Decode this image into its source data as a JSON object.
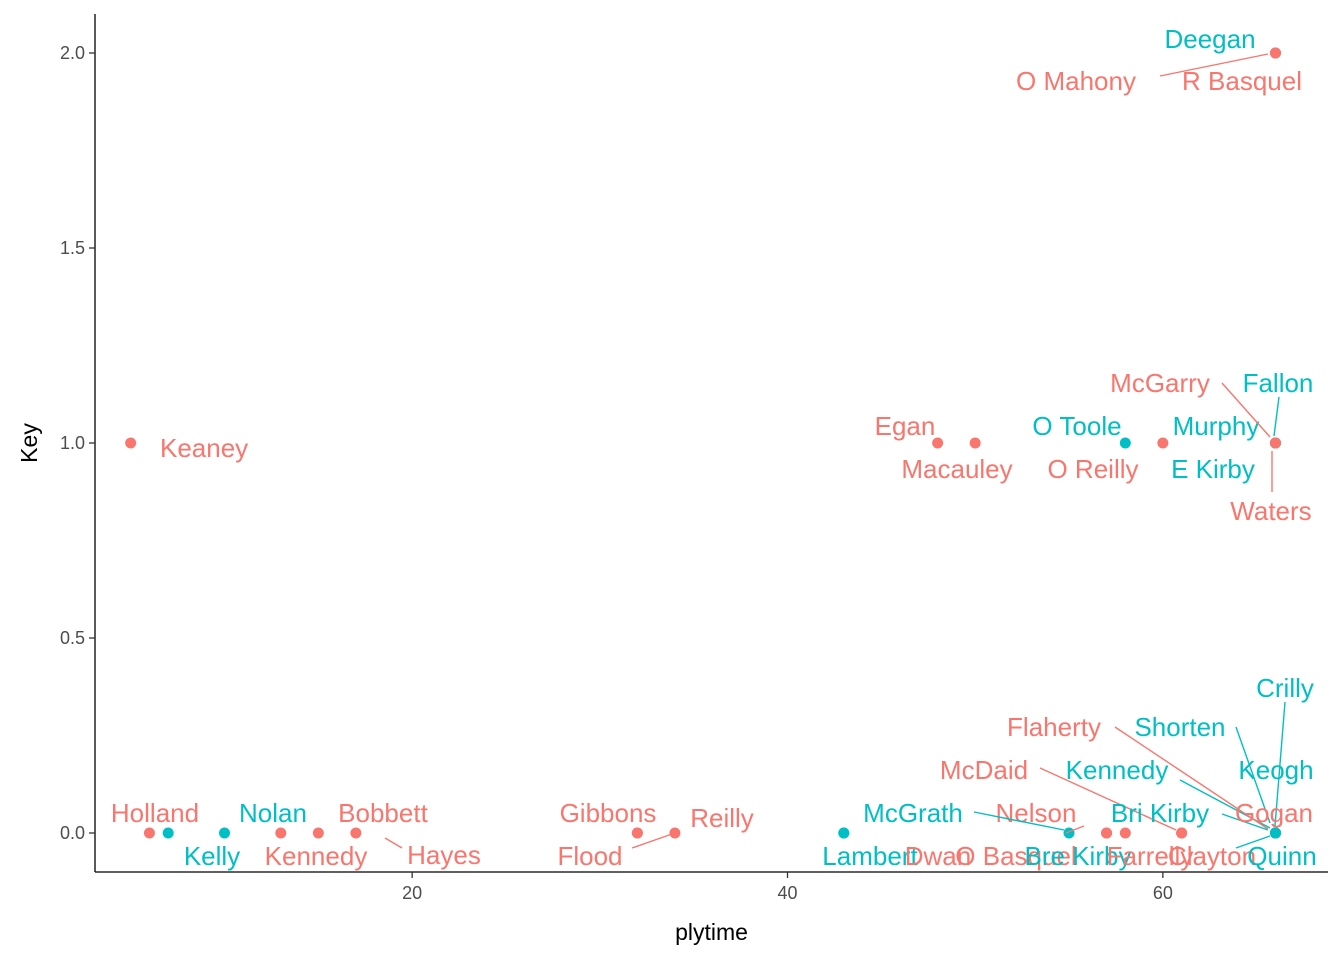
{
  "chart_data": {
    "type": "scatter",
    "xlabel": "plytime",
    "ylabel": "Key",
    "xlim": [
      3.1,
      68.8
    ],
    "ylim": [
      -0.1,
      2.1
    ],
    "x_ticks": [
      20,
      40,
      60
    ],
    "y_ticks": [
      0.0,
      0.5,
      1.0,
      1.5,
      2.0
    ],
    "x_tick_labels": [
      "20",
      "40",
      "60"
    ],
    "y_tick_labels": [
      "0.0",
      "0.5",
      "1.0",
      "1.5",
      "2.0"
    ],
    "grid": false,
    "legend": "none",
    "colors": {
      "group_a": "#F8766D",
      "group_b": "#00BFC4",
      "axis": "#000000",
      "tick_text": "#4d4d4d"
    },
    "points": [
      {
        "label": "Keaney",
        "x": 5,
        "y": 1,
        "group": "group_a"
      },
      {
        "label": "Holland",
        "x": 6,
        "y": 0,
        "group": "group_a"
      },
      {
        "label": "Kelly",
        "x": 7,
        "y": 0,
        "group": "group_b"
      },
      {
        "label": "Nolan",
        "x": 10,
        "y": 0,
        "group": "group_b"
      },
      {
        "label": "Kennedy",
        "x": 13,
        "y": 0,
        "group": "group_a"
      },
      {
        "label": "Bobbett",
        "x": 15,
        "y": 0,
        "group": "group_a"
      },
      {
        "label": "Hayes",
        "x": 17,
        "y": 0,
        "group": "group_a"
      },
      {
        "label": "Gibbons",
        "x": 32,
        "y": 0,
        "group": "group_a"
      },
      {
        "label": "Flood",
        "x": 32,
        "y": 0,
        "group": "group_a"
      },
      {
        "label": "Reilly",
        "x": 34,
        "y": 0,
        "group": "group_a"
      },
      {
        "label": "McGrath",
        "x": 43,
        "y": 0,
        "group": "group_b"
      },
      {
        "label": "Lambert",
        "x": 43,
        "y": 0,
        "group": "group_b"
      },
      {
        "label": "Nelson",
        "x": 57,
        "y": 0,
        "group": "group_a"
      },
      {
        "label": "Dwan",
        "x": 57,
        "y": 0,
        "group": "group_a"
      },
      {
        "label": "O Basquel",
        "x": 58,
        "y": 0,
        "group": "group_a"
      },
      {
        "label": "Bre Kirby",
        "x": 55,
        "y": 0,
        "group": "group_b"
      },
      {
        "label": "McDaid",
        "x": 61,
        "y": 0,
        "group": "group_a"
      },
      {
        "label": "Farrelly",
        "x": 61,
        "y": 0,
        "group": "group_a"
      },
      {
        "label": "Kennedy",
        "x": 66,
        "y": 0,
        "group": "group_b"
      },
      {
        "label": "Bri Kirby",
        "x": 66,
        "y": 0,
        "group": "group_b"
      },
      {
        "label": "Flaherty",
        "x": 66,
        "y": 0,
        "group": "group_a"
      },
      {
        "label": "Clayton",
        "x": 66,
        "y": 0,
        "group": "group_a"
      },
      {
        "label": "Shorten",
        "x": 66,
        "y": 0,
        "group": "group_b"
      },
      {
        "label": "Crilly",
        "x": 66,
        "y": 0,
        "group": "group_b"
      },
      {
        "label": "Keogh",
        "x": 66,
        "y": 0,
        "group": "group_b"
      },
      {
        "label": "Gogan",
        "x": 66,
        "y": 0,
        "group": "group_a"
      },
      {
        "label": "Quinn",
        "x": 66,
        "y": 0,
        "group": "group_b"
      },
      {
        "label": "Egan",
        "x": 48,
        "y": 1,
        "group": "group_a"
      },
      {
        "label": "Macauley",
        "x": 50,
        "y": 1,
        "group": "group_a"
      },
      {
        "label": "O Toole",
        "x": 58,
        "y": 1,
        "group": "group_b"
      },
      {
        "label": "O Reilly",
        "x": 60,
        "y": 1,
        "group": "group_a"
      },
      {
        "label": "E Kirby",
        "x": 66,
        "y": 1,
        "group": "group_b"
      },
      {
        "label": "Murphy",
        "x": 66,
        "y": 1,
        "group": "group_b"
      },
      {
        "label": "McGarry",
        "x": 66,
        "y": 1,
        "group": "group_a"
      },
      {
        "label": "Fallon",
        "x": 66,
        "y": 1,
        "group": "group_b"
      },
      {
        "label": "Waters",
        "x": 66,
        "y": 1,
        "group": "group_a"
      },
      {
        "label": "Deegan",
        "x": 66,
        "y": 2,
        "group": "group_b"
      },
      {
        "label": "O Mahony",
        "x": 66,
        "y": 2,
        "group": "group_a"
      },
      {
        "label": "R Basquel",
        "x": 66,
        "y": 2,
        "group": "group_a"
      }
    ]
  }
}
